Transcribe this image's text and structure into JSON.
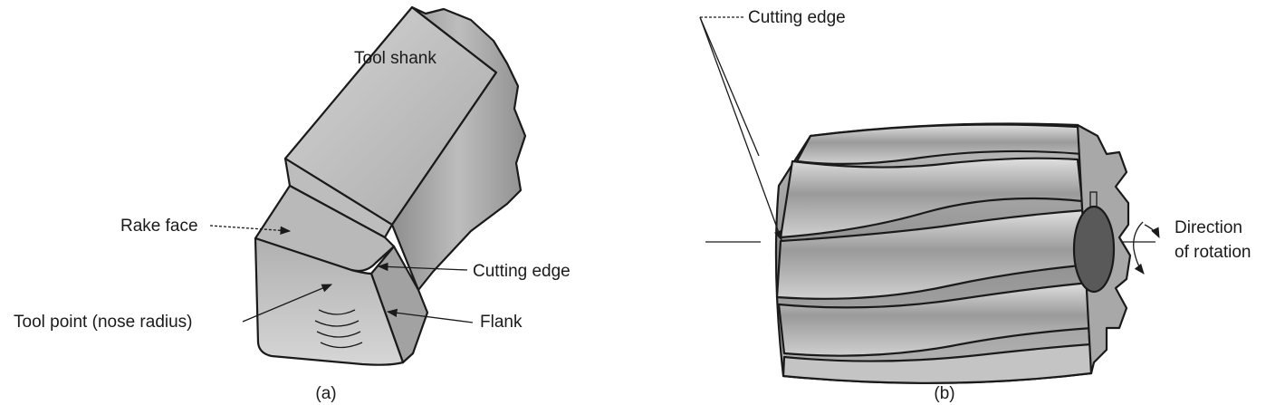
{
  "panel_a": {
    "caption": "(a)",
    "labels": {
      "tool_shank": "Tool shank",
      "rake_face": "Rake face",
      "cutting_edge": "Cutting edge",
      "tool_point": "Tool point (nose radius)",
      "flank": "Flank"
    }
  },
  "panel_b": {
    "caption": "(b)",
    "labels": {
      "cutting_edge": "Cutting edge",
      "direction_line1": "Direction",
      "direction_line2": "of rotation"
    }
  },
  "colors": {
    "outline": "#1a1a1a",
    "face_light": "#c8c8c8",
    "face_mid": "#a8a8a8",
    "face_dark": "#8a8a8a",
    "bore": "#555555"
  }
}
